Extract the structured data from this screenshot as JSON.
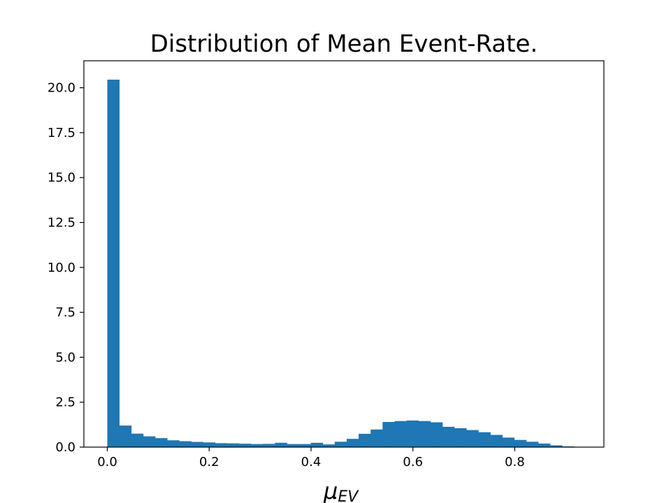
{
  "chart_data": {
    "type": "bar",
    "title": "Distribution of Mean Event-Rate.",
    "xlabel": "μ",
    "xlabel_subscript": "EV",
    "ylabel": "",
    "xlim": [
      -0.046,
      0.975
    ],
    "ylim": [
      0,
      21.5
    ],
    "bin_start": 0.0,
    "bin_width": 0.0235,
    "values": [
      20.45,
      1.2,
      0.75,
      0.6,
      0.5,
      0.38,
      0.33,
      0.29,
      0.26,
      0.22,
      0.21,
      0.19,
      0.17,
      0.18,
      0.24,
      0.17,
      0.17,
      0.24,
      0.15,
      0.3,
      0.46,
      0.74,
      0.98,
      1.4,
      1.45,
      1.48,
      1.45,
      1.38,
      1.13,
      1.05,
      0.95,
      0.83,
      0.68,
      0.53,
      0.4,
      0.3,
      0.2,
      0.1,
      0.04,
      0.02,
      0.01
    ],
    "xticks": [
      0.0,
      0.2,
      0.4,
      0.6,
      0.8
    ],
    "xtick_labels": [
      "0.0",
      "0.2",
      "0.4",
      "0.6",
      "0.8"
    ],
    "yticks": [
      0.0,
      2.5,
      5.0,
      7.5,
      10.0,
      12.5,
      15.0,
      17.5,
      20.0
    ],
    "ytick_labels": [
      "0.0",
      "2.5",
      "5.0",
      "7.5",
      "10.0",
      "12.5",
      "15.0",
      "17.5",
      "20.0"
    ],
    "bar_color": "#1f77b4",
    "grid": false,
    "legend": "none"
  }
}
